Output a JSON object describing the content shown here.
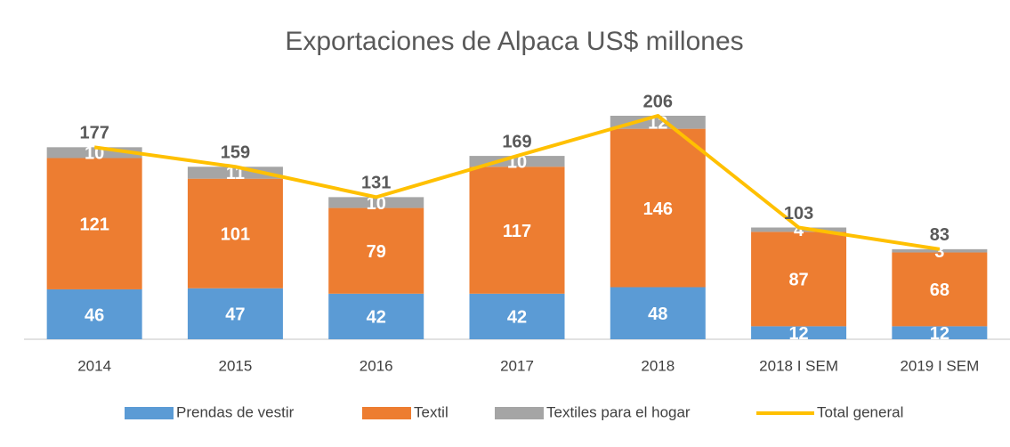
{
  "chart_data": {
    "type": "bar",
    "stacked": true,
    "title": "Exportaciones de Alpaca US$ millones",
    "categories": [
      "2014",
      "2015",
      "2016",
      "2017",
      "2018",
      "2018 I SEM",
      "2019 I SEM"
    ],
    "series": [
      {
        "name": "Prendas de vestir",
        "color": "#5b9bd5",
        "values": [
          46,
          47,
          42,
          42,
          48,
          12,
          12
        ]
      },
      {
        "name": "Textil",
        "color": "#ed7d31",
        "values": [
          121,
          101,
          79,
          117,
          146,
          87,
          68
        ]
      },
      {
        "name": "Textiles para el hogar",
        "color": "#a5a5a5",
        "values": [
          10,
          11,
          10,
          10,
          12,
          4,
          3
        ]
      },
      {
        "name": "Total general",
        "type": "line",
        "color": "#ffc000",
        "values": [
          177,
          159,
          131,
          169,
          206,
          103,
          83
        ]
      }
    ],
    "legend": "bottom"
  }
}
